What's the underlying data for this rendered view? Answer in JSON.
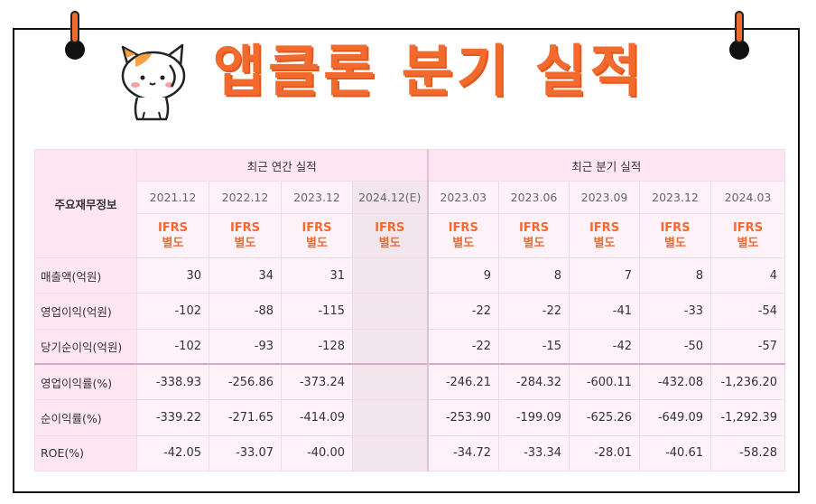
{
  "title": "앱클론 분기 실적",
  "colors": {
    "accent": "#f26a2e",
    "table_bg": "#fde5f2"
  },
  "mascot": "cat-mascot-icon",
  "table": {
    "corner_label": "주요재무정보",
    "groups": [
      "최근 연간 실적",
      "최근 분기 실적"
    ],
    "periods": [
      "2021.12",
      "2022.12",
      "2023.12",
      "2024.12(E)",
      "2023.03",
      "2023.06",
      "2023.09",
      "2023.12",
      "2024.03"
    ],
    "standard_line1": "IFRS",
    "standard_line2": "별도",
    "rows": [
      {
        "label": "매출액(억원)",
        "values": [
          "30",
          "34",
          "31",
          "",
          "9",
          "8",
          "7",
          "8",
          "4"
        ]
      },
      {
        "label": "영업이익(억원)",
        "values": [
          "-102",
          "-88",
          "-115",
          "",
          "-22",
          "-22",
          "-41",
          "-33",
          "-54"
        ]
      },
      {
        "label": "당기순이익(억원)",
        "values": [
          "-102",
          "-93",
          "-128",
          "",
          "-22",
          "-15",
          "-42",
          "-50",
          "-57"
        ]
      },
      {
        "label": "영업이익률(%)",
        "values": [
          "-338.93",
          "-256.86",
          "-373.24",
          "",
          "-246.21",
          "-284.32",
          "-600.11",
          "-432.08",
          "-1,236.20"
        ]
      },
      {
        "label": "순이익률(%)",
        "values": [
          "-339.22",
          "-271.65",
          "-414.09",
          "",
          "-253.90",
          "-199.09",
          "-625.26",
          "-649.09",
          "-1,292.39"
        ]
      },
      {
        "label": "ROE(%)",
        "values": [
          "-42.05",
          "-33.07",
          "-40.00",
          "",
          "-34.72",
          "-33.34",
          "-28.01",
          "-40.61",
          "-58.28"
        ]
      }
    ]
  }
}
